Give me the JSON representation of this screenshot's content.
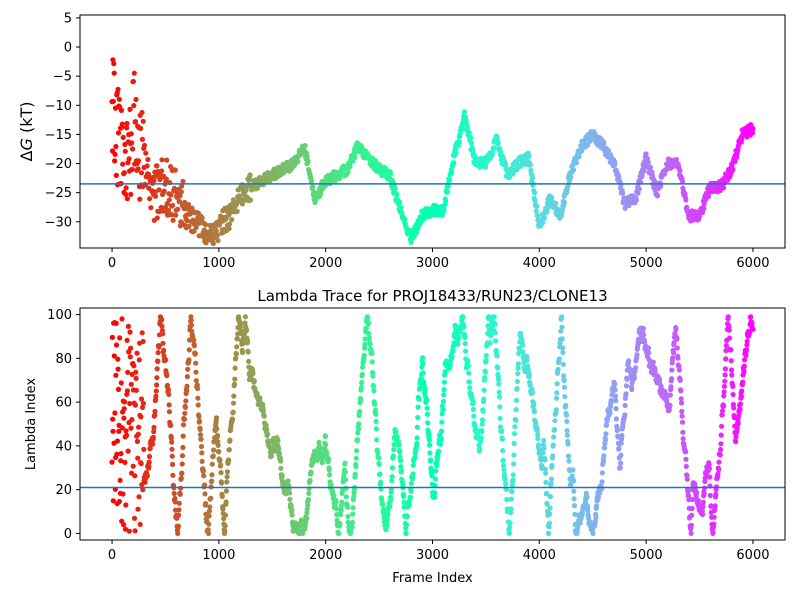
{
  "chart_data": [
    {
      "type": "scatter",
      "title": "",
      "xlabel": "",
      "ylabel_prefix": "Δ",
      "ylabel_var": "G",
      "ylabel_suffix": " (kT)",
      "xlim": [
        -300,
        6300
      ],
      "ylim": [
        -34.5,
        5.5
      ],
      "xticks": [
        0,
        1000,
        2000,
        3000,
        4000,
        5000,
        6000
      ],
      "xtick_labels": [
        "0",
        "1000",
        "2000",
        "3000",
        "4000",
        "5000",
        "6000"
      ],
      "yticks": [
        -30,
        -25,
        -20,
        -15,
        -10,
        -5,
        0,
        5
      ],
      "ytick_labels": [
        "−30",
        "−25",
        "−20",
        "−15",
        "−10",
        "−5",
        "0",
        "5"
      ],
      "hline": -23.5,
      "hline_color": "#1f77b4",
      "colormap": "rainbow",
      "grid": false,
      "series": [
        {
          "x": [
            0,
            50,
            100,
            150,
            200,
            250,
            300,
            400,
            500,
            600,
            700,
            800,
            900,
            1000,
            1100,
            1200,
            1300,
            1400,
            1500,
            1600,
            1700,
            1800,
            1900,
            2000,
            2100,
            2200,
            2300,
            2400,
            2500,
            2600,
            2700,
            2800,
            2900,
            3000,
            3100,
            3200,
            3300,
            3400,
            3500,
            3600,
            3700,
            3800,
            3900,
            4000,
            4100,
            4200,
            4300,
            4400,
            4500,
            4600,
            4700,
            4800,
            4900,
            5000,
            5100,
            5200,
            5300,
            5400,
            5500,
            5600,
            5700,
            5800,
            5900,
            6000
          ],
          "y": [
            -10,
            -15,
            -20,
            -22,
            -12,
            -18,
            -20,
            -25,
            -24,
            -26,
            -29,
            -30,
            -33,
            -31,
            -29,
            -26,
            -24,
            -23,
            -22,
            -21,
            -20,
            -17,
            -26,
            -23,
            -22,
            -21,
            -17,
            -19,
            -21,
            -22,
            -28,
            -33,
            -29,
            -28,
            -28,
            -19,
            -12,
            -20,
            -20,
            -16,
            -22,
            -20,
            -19,
            -31,
            -26,
            -29,
            -21,
            -17,
            -15,
            -17,
            -20,
            -27,
            -26,
            -19,
            -25,
            -20,
            -20,
            -29,
            -29,
            -24,
            -24,
            -21,
            -15,
            -14
          ]
        }
      ]
    },
    {
      "type": "scatter",
      "title": "Lambda Trace for PROJ18433/RUN23/CLONE13",
      "xlabel": "Frame Index",
      "ylabel": "Lambda Index",
      "xlim": [
        -300,
        6300
      ],
      "ylim": [
        -3,
        103
      ],
      "xticks": [
        0,
        1000,
        2000,
        3000,
        4000,
        5000,
        6000
      ],
      "xtick_labels": [
        "0",
        "1000",
        "2000",
        "3000",
        "4000",
        "5000",
        "6000"
      ],
      "yticks": [
        0,
        20,
        40,
        60,
        80,
        100
      ],
      "ytick_labels": [
        "0",
        "20",
        "40",
        "60",
        "80",
        "100"
      ],
      "hline": 21,
      "hline_color": "#1f77b4",
      "colormap": "rainbow",
      "grid": false,
      "x_range": [
        0,
        6000
      ],
      "y_range": [
        0,
        99
      ],
      "n_points_approx": 6000
    }
  ]
}
